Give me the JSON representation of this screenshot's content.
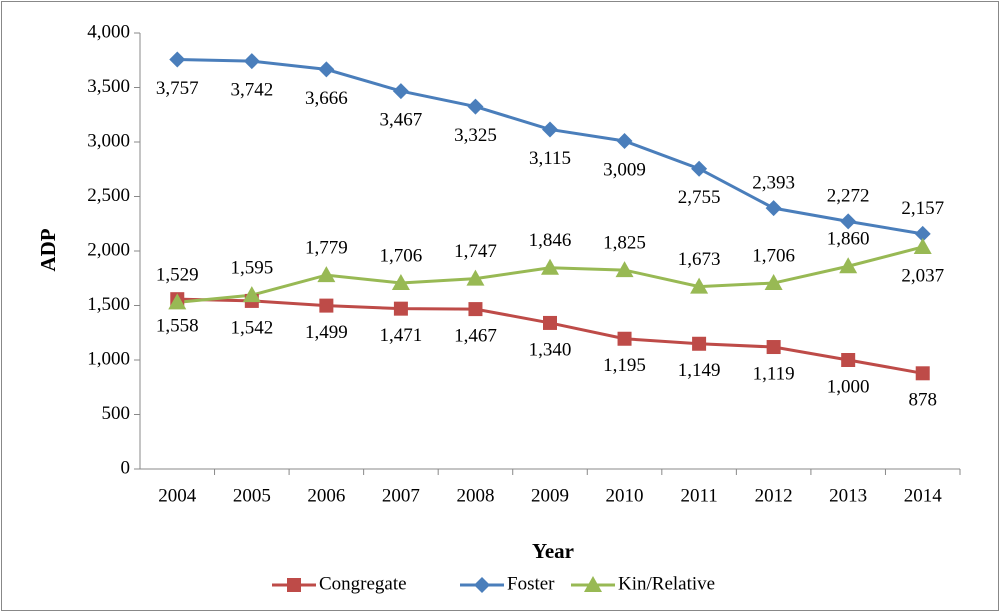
{
  "chart_data": {
    "type": "line",
    "x_label": "Year",
    "y_label": "ADP",
    "categories": [
      "2004",
      "2005",
      "2006",
      "2007",
      "2008",
      "2009",
      "2010",
      "2011",
      "2012",
      "2013",
      "2014"
    ],
    "series": [
      {
        "name": "Congregate",
        "color": "#be4b48",
        "marker": "square",
        "values": [
          1558,
          1542,
          1499,
          1471,
          1467,
          1340,
          1195,
          1149,
          1119,
          1000,
          878
        ],
        "value_labels": [
          "1,558",
          "1,542",
          "1,499",
          "1,471",
          "1,467",
          "1,340",
          "1,195",
          "1,149",
          "1,119",
          "1,000",
          "878"
        ]
      },
      {
        "name": "Foster",
        "color": "#4a7ebb",
        "marker": "diamond",
        "values": [
          3757,
          3742,
          3666,
          3467,
          3325,
          3115,
          3009,
          2755,
          2393,
          2272,
          2157
        ],
        "value_labels": [
          "3,757",
          "3,742",
          "3,666",
          "3,467",
          "3,325",
          "3,115",
          "3,009",
          "2,755",
          "2,393",
          "2,272",
          "2,157"
        ]
      },
      {
        "name": "Kin/Relative",
        "color": "#98b954",
        "marker": "triangle",
        "values": [
          1529,
          1595,
          1779,
          1706,
          1747,
          1846,
          1825,
          1673,
          1706,
          1860,
          2037
        ],
        "value_labels": [
          "1,529",
          "1,595",
          "1,779",
          "1,706",
          "1,747",
          "1,846",
          "1,825",
          "1,673",
          "1,706",
          "1,860",
          "2,037"
        ]
      }
    ],
    "ylim": [
      0,
      4000
    ],
    "yticks": [
      0,
      500,
      {
        "value": 1000,
        "label": "1,000"
      },
      {
        "value": 1500,
        "label": "1,500"
      },
      {
        "value": 2000,
        "label": "2,000"
      },
      {
        "value": 2500,
        "label": "2,500"
      },
      {
        "value": 3000,
        "label": "3,000"
      },
      {
        "value": 3500,
        "label": "3,500"
      },
      {
        "value": 4000,
        "label": "4,000"
      }
    ],
    "grid": false,
    "legend": "bottom"
  }
}
